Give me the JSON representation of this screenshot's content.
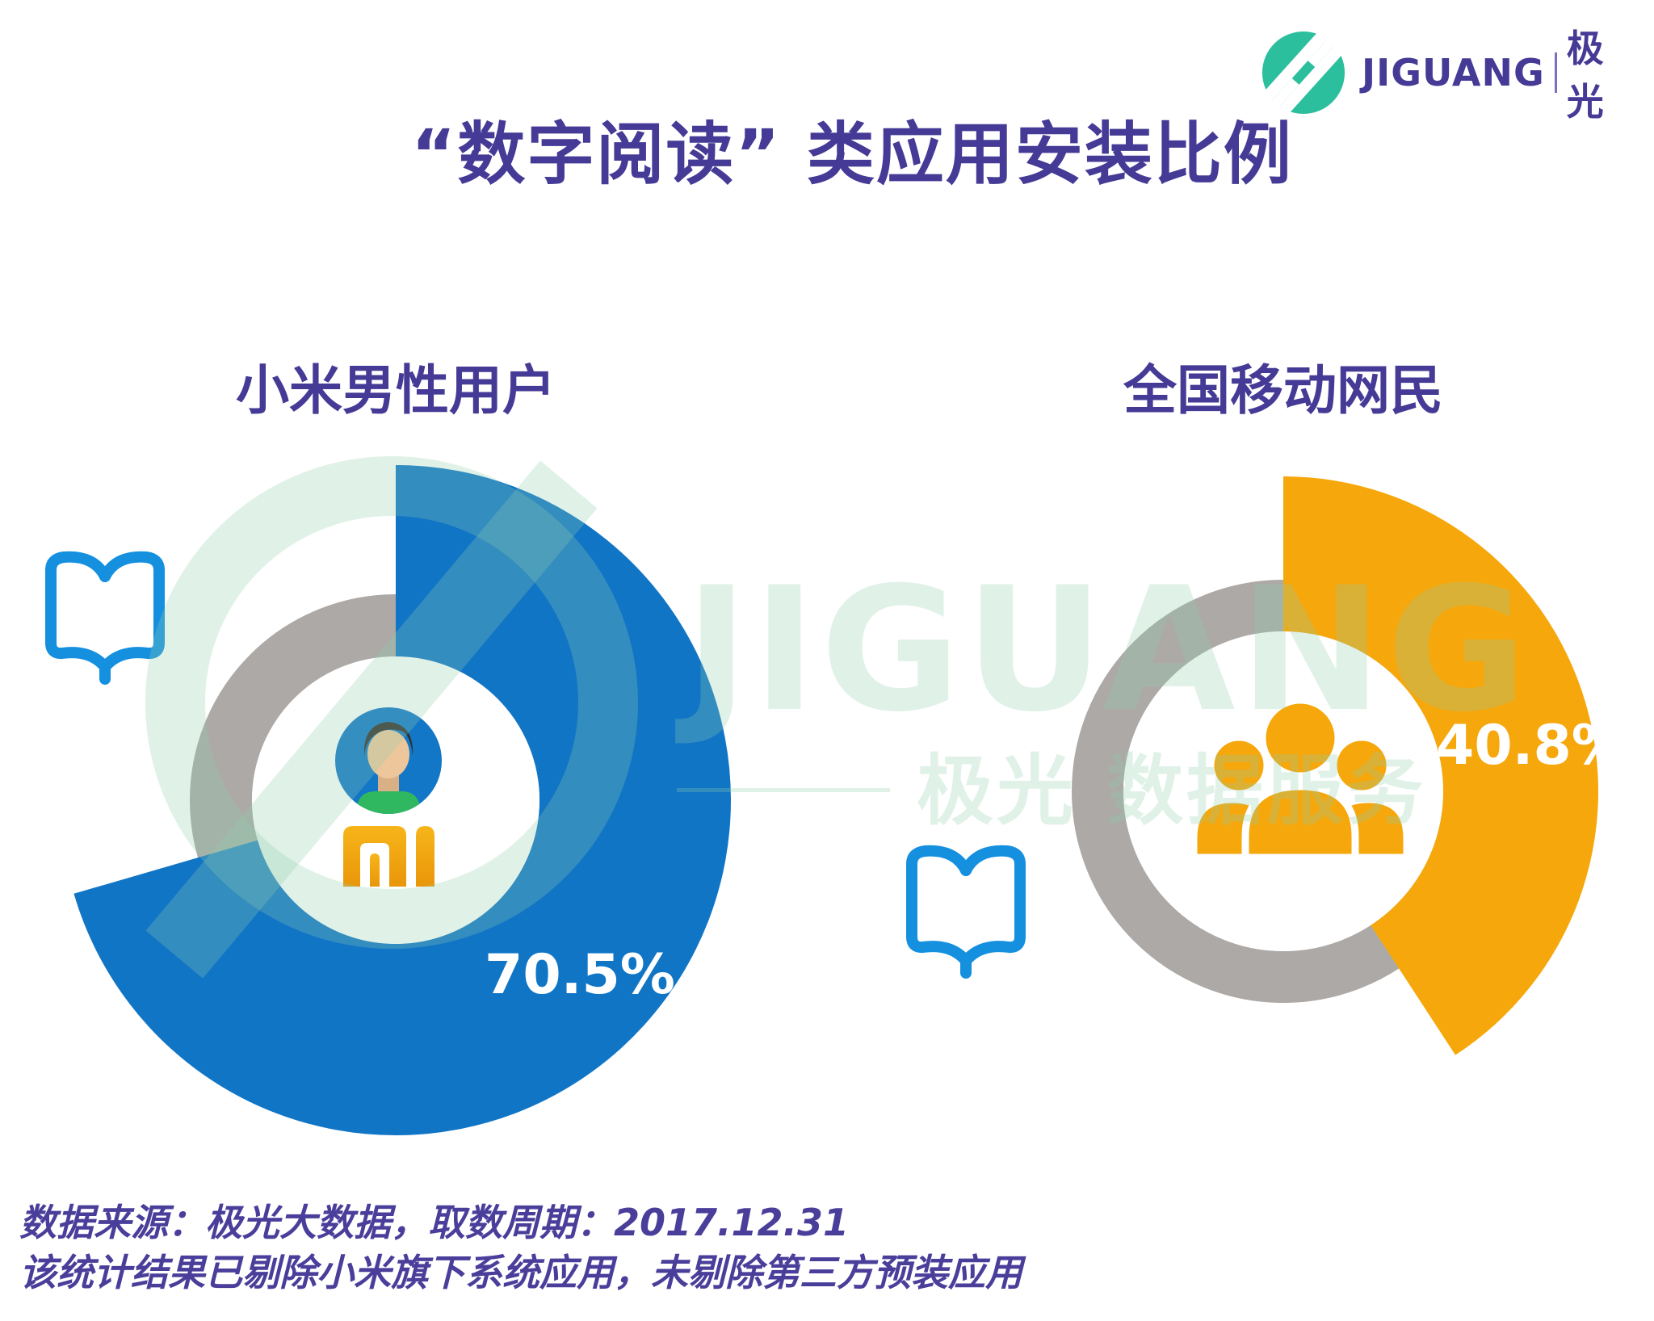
{
  "header": {
    "logo_icon": "jiguang-logo",
    "logo_color": "#2BBF9E",
    "brand_latin": "JIGUANG",
    "brand_cjk": "极光",
    "brand_color": "#453A95"
  },
  "title": "“数字阅读” 类应用安装比例",
  "chart_data": {
    "type": "pie",
    "subtype": "donut",
    "start_angle_deg": 0,
    "direction": "clockwise",
    "ring_color": "#ACA9A6",
    "legend_position": "none",
    "charts": [
      {
        "label": "小米男性用户",
        "value": 70.5,
        "value_label": "70.5%",
        "color": "#1175C6",
        "center_icon": "male-avatar-and-mi-logo",
        "side_icon": "open-book"
      },
      {
        "label": "全国移动网民",
        "value": 40.8,
        "value_label": "40.8%",
        "color": "#F6A70B",
        "center_icon": "people-group",
        "side_icon": "open-book"
      }
    ]
  },
  "icons": {
    "book_color": "#1590DF",
    "mi_logo_color": "#F1A10A",
    "avatar_shirt_color": "#2FB85F"
  },
  "watermark": {
    "latin": "JIGUANG",
    "cjk": "极光 数据服务",
    "color": "#8FCBAD"
  },
  "footer": {
    "line1": "数据来源：极光大数据，取数周期：2017.12.31",
    "line2": "该统计结果已剔除小米旗下系统应用，未剔除第三方预装应用"
  }
}
